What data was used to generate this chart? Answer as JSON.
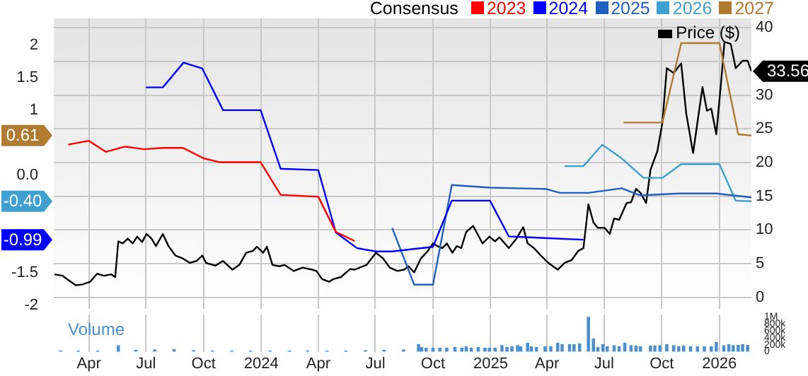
{
  "chart_data": {
    "type": "line",
    "legend_title": "Consensus",
    "legend": "top",
    "grid": true,
    "xlim": [
      "2023-02-04",
      "2026-02-21"
    ],
    "annotations": [
      "0.61",
      "-0.40",
      "-0.99"
    ],
    "xticks": [
      {
        "value": "2023-04",
        "label": "Apr"
      },
      {
        "value": "2023-07",
        "label": "Jul"
      },
      {
        "value": "2023-10",
        "label": "Oct"
      },
      {
        "value": "2024-01",
        "label": "2024"
      },
      {
        "value": "2024-04",
        "label": "Apr"
      },
      {
        "value": "2024-07",
        "label": "Jul"
      },
      {
        "value": "2024-10",
        "label": "Oct"
      },
      {
        "value": "2025-01",
        "label": "2025"
      },
      {
        "value": "2025-04",
        "label": "Apr"
      },
      {
        "value": "2025-07",
        "label": "Jul"
      },
      {
        "value": "2025-10",
        "label": "Oct"
      },
      {
        "value": "2026-01",
        "label": "2026"
      }
    ],
    "ylim": [
      -2.05,
      2.41
    ],
    "yticks": [
      {
        "value": -2,
        "label": "-2"
      },
      {
        "value": -1.5,
        "label": "-1.5"
      },
      {
        "value": 0,
        "label": "0.0"
      },
      {
        "value": 1,
        "label": "1"
      },
      {
        "value": 1.5,
        "label": "1.5"
      },
      {
        "value": 2,
        "label": "2"
      }
    ],
    "y2lim": [
      -1.7,
      41.4
    ],
    "y2ticks": [
      0,
      5,
      10,
      15,
      20,
      25,
      30,
      {
        "value": 35,
        "label": null
      },
      40
    ],
    "y3lim": [
      0,
      1060000
    ],
    "y3ticks": [
      {
        "value": 0,
        "label": "0"
      },
      {
        "value": 200000,
        "label": "200k"
      },
      {
        "value": 400000,
        "label": "400k"
      },
      {
        "value": 600000,
        "label": "600k"
      },
      {
        "value": 800000,
        "label": "800k"
      },
      {
        "value": 1000000,
        "label": "1M"
      }
    ],
    "series": [
      {
        "name": "2023",
        "color": "#ff0000",
        "x": [
          "2023-02-27",
          "2023-04-01",
          "2023-04-28",
          "2023-05-29",
          "2023-06-28",
          "2023-07-28",
          "2023-08-29",
          "2023-10-01",
          "2023-10-27",
          "2023-12-31",
          "2024-02-01",
          "2024-04-01",
          "2024-04-29",
          "2024-05-29"
        ],
        "values": [
          0.47,
          0.53,
          0.36,
          0.44,
          0.4,
          0.42,
          0.42,
          0.26,
          0.2,
          0.2,
          -0.3,
          -0.33,
          -0.87,
          -1.01
        ]
      },
      {
        "name": "2024",
        "color": "#0000ff",
        "x": [
          "2023-07-01",
          "2023-07-28",
          "2023-08-30",
          "2023-09-29",
          "2023-11-01",
          "2023-12-31",
          "2024-02-01",
          "2024-04-01",
          "2024-04-29",
          "2024-06-02",
          "2024-07-02",
          "2024-07-28",
          "2024-10-01",
          "2024-10-31",
          "2024-12-31",
          "2025-01-30",
          "2025-05-29"
        ],
        "values": [
          1.35,
          1.35,
          1.73,
          1.64,
          1.0,
          1.0,
          0.1,
          0.08,
          -0.88,
          -1.12,
          -1.17,
          -1.17,
          -1.1,
          -0.39,
          -0.39,
          -0.94,
          -0.99
        ]
      },
      {
        "name": "2025",
        "color": "#1f5fbf",
        "x": [
          "2024-07-28",
          "2024-09-01",
          "2024-10-01",
          "2024-10-31",
          "2024-12-31",
          "2025-03-30",
          "2025-04-22",
          "2025-06-06",
          "2025-07-29",
          "2025-08-28",
          "2025-10-28",
          "2025-12-27",
          "2026-02-21"
        ],
        "values": [
          -0.81,
          -1.68,
          -1.68,
          -0.15,
          -0.19,
          -0.21,
          -0.27,
          -0.27,
          -0.2,
          -0.31,
          -0.28,
          -0.28,
          -0.34
        ]
      },
      {
        "name": "2026",
        "color": "#3ea0d0",
        "x": [
          "2025-04-29",
          "2025-05-29",
          "2025-06-28",
          "2025-07-29",
          "2025-09-02",
          "2025-10-02",
          "2025-11-01",
          "2026-01-01",
          "2026-01-27",
          "2026-02-21"
        ],
        "values": [
          0.14,
          0.14,
          0.47,
          0.26,
          -0.04,
          -0.04,
          0.17,
          0.17,
          -0.39,
          -0.4
        ]
      },
      {
        "name": "2027",
        "color": "#b07a30",
        "x": [
          "2025-08-01",
          "2025-10-02",
          "2025-11-01",
          "2026-01-01",
          "2026-01-31",
          "2026-02-21"
        ],
        "values": [
          0.81,
          0.81,
          2.03,
          2.03,
          0.63,
          0.61
        ]
      },
      {
        "name": "Price ($)",
        "color": "#000000",
        "axis": "y2",
        "x": [
          "2023-02-05",
          "2023-02-18",
          "2023-02-28",
          "2023-03-11",
          "2023-03-22",
          "2023-04-03",
          "2023-04-14",
          "2023-04-25",
          "2023-05-07",
          "2023-05-13",
          "2023-05-18",
          "2023-05-25",
          "2023-06-02",
          "2023-06-10",
          "2023-06-17",
          "2023-06-25",
          "2023-07-02",
          "2023-07-10",
          "2023-07-17",
          "2023-07-28",
          "2023-08-06",
          "2023-08-17",
          "2023-08-28",
          "2023-09-09",
          "2023-09-20",
          "2023-09-29",
          "2023-10-05",
          "2023-10-20",
          "2023-11-01",
          "2023-11-16",
          "2023-11-27",
          "2023-12-08",
          "2023-12-19",
          "2023-12-25",
          "2024-01-04",
          "2024-01-10",
          "2024-01-19",
          "2024-01-30",
          "2024-02-07",
          "2024-02-22",
          "2024-03-07",
          "2024-03-22",
          "2024-03-29",
          "2024-04-07",
          "2024-04-18",
          "2024-04-25",
          "2024-05-07",
          "2024-05-22",
          "2024-05-29",
          "2024-06-06",
          "2024-06-17",
          "2024-07-02",
          "2024-07-13",
          "2024-07-24",
          "2024-08-05",
          "2024-08-16",
          "2024-08-23",
          "2024-09-01",
          "2024-09-12",
          "2024-09-23",
          "2024-10-01",
          "2024-10-08",
          "2024-10-16",
          "2024-10-23",
          "2024-11-01",
          "2024-11-08",
          "2024-11-15",
          "2024-11-23",
          "2024-12-04",
          "2024-12-11",
          "2024-12-19",
          "2024-12-30",
          "2025-01-08",
          "2025-01-15",
          "2025-01-30",
          "2025-02-11",
          "2025-02-22",
          "2025-03-01",
          "2025-03-11",
          "2025-03-22",
          "2025-04-03",
          "2025-04-18",
          "2025-04-29",
          "2025-05-10",
          "2025-05-21",
          "2025-05-29",
          "2025-06-06",
          "2025-06-14",
          "2025-06-21",
          "2025-07-02",
          "2025-07-10",
          "2025-07-17",
          "2025-07-25",
          "2025-08-06",
          "2025-08-13",
          "2025-08-21",
          "2025-08-28",
          "2025-09-06",
          "2025-09-13",
          "2025-09-24",
          "2025-10-02",
          "2025-10-09",
          "2025-10-20",
          "2025-11-01",
          "2025-11-09",
          "2025-11-20",
          "2025-11-27",
          "2025-12-05",
          "2025-12-12",
          "2025-12-19",
          "2025-12-27",
          "2026-01-04",
          "2026-01-09",
          "2026-01-19",
          "2026-01-27",
          "2026-02-07",
          "2026-02-15",
          "2026-02-21"
        ],
        "values": [
          3.4,
          3.2,
          2.5,
          1.8,
          1.9,
          2.3,
          3.5,
          3.2,
          3.4,
          3.0,
          8.3,
          8.0,
          8.7,
          8.0,
          9.0,
          8.2,
          9.4,
          8.7,
          7.6,
          9.4,
          7.6,
          6.2,
          5.8,
          5.1,
          5.4,
          6.2,
          5.1,
          4.7,
          5.4,
          4.1,
          4.8,
          6.6,
          6.9,
          7.5,
          6.6,
          7.5,
          4.8,
          4.6,
          4.8,
          3.9,
          4.4,
          4.1,
          3.9,
          2.7,
          2.3,
          2.7,
          3.0,
          4.2,
          4.1,
          4.4,
          4.8,
          6.6,
          5.8,
          4.4,
          3.9,
          4.1,
          4.6,
          3.7,
          5.8,
          6.9,
          8.0,
          7.6,
          7.3,
          8.0,
          6.6,
          7.6,
          7.3,
          9.7,
          10.6,
          9.4,
          8.0,
          9.0,
          8.3,
          8.9,
          7.3,
          8.7,
          10.4,
          8.0,
          7.3,
          6.2,
          5.1,
          4.1,
          5.1,
          5.5,
          6.9,
          7.3,
          13.8,
          11.1,
          10.3,
          10.3,
          9.4,
          11.7,
          11.5,
          14.0,
          14.1,
          16.1,
          15.5,
          14.0,
          18.9,
          21.7,
          25.9,
          34.0,
          33.3,
          34.7,
          27.3,
          21.4,
          26.0,
          31.2,
          27.7,
          28.0,
          24.2,
          32.3,
          37.9,
          37.6,
          34.0,
          35.1,
          35.1,
          33.56
        ],
        "value_labels": [
          null,
          null,
          null,
          null,
          null,
          null,
          null,
          null,
          null,
          null,
          null,
          null,
          null,
          null,
          null,
          null,
          null,
          null,
          null,
          null,
          null,
          null,
          null,
          null,
          null,
          null,
          null,
          null,
          null,
          null,
          null,
          null,
          null,
          null,
          null,
          null,
          null,
          null,
          null,
          null,
          null,
          null,
          null,
          null,
          null,
          null,
          null,
          null,
          null,
          null,
          null,
          null,
          null,
          null,
          null,
          null,
          null,
          null,
          null,
          null,
          null,
          null,
          null,
          null,
          null,
          null,
          null,
          null,
          null,
          null,
          null,
          null,
          null,
          null,
          null,
          null,
          null,
          null,
          null,
          null,
          null,
          null,
          null,
          null,
          null,
          null,
          null,
          null,
          null,
          null,
          null,
          null,
          null,
          null,
          null,
          null,
          null,
          null,
          null,
          null,
          null,
          null,
          null,
          null,
          null,
          null,
          null,
          null,
          null,
          null,
          null,
          null,
          null,
          null,
          null,
          null,
          null,
          "33.56"
        ]
      },
      {
        "name": "Volume",
        "type": "bar",
        "color": "#4a90d0",
        "axis": "y3",
        "x": [
          "2023-02-15",
          "2023-03-15",
          "2023-04-15",
          "2023-05-18",
          "2023-06-15",
          "2023-07-15",
          "2023-08-15",
          "2023-09-15",
          "2023-10-15",
          "2023-11-15",
          "2023-12-15",
          "2024-01-15",
          "2024-02-15",
          "2024-03-15",
          "2024-04-15",
          "2024-05-15",
          "2024-06-15",
          "2024-07-15",
          "2024-08-15",
          "2024-09-08",
          "2024-09-13",
          "2024-09-20",
          "2024-10-01",
          "2024-10-12",
          "2024-10-23",
          "2024-11-05",
          "2024-11-16",
          "2024-11-23",
          "2024-12-01",
          "2024-12-12",
          "2024-12-23",
          "2024-12-30",
          "2025-01-08",
          "2025-01-19",
          "2025-01-27",
          "2025-02-04",
          "2025-02-13",
          "2025-02-18",
          "2025-03-01",
          "2025-03-07",
          "2025-03-15",
          "2025-03-29",
          "2025-04-07",
          "2025-04-18",
          "2025-04-25",
          "2025-05-07",
          "2025-05-14",
          "2025-05-23",
          "2025-06-06",
          "2025-06-14",
          "2025-06-21",
          "2025-06-29",
          "2025-07-06",
          "2025-07-17",
          "2025-07-25",
          "2025-08-03",
          "2025-08-13",
          "2025-08-21",
          "2025-08-28",
          "2025-09-13",
          "2025-09-20",
          "2025-09-28",
          "2025-10-09",
          "2025-10-20",
          "2025-10-28",
          "2025-11-05",
          "2025-11-16",
          "2025-11-27",
          "2025-12-08",
          "2025-12-19",
          "2025-12-27",
          "2026-01-08",
          "2026-01-16",
          "2026-01-23",
          "2026-01-31",
          "2026-02-07",
          "2026-02-15"
        ],
        "values": [
          20000,
          20000,
          20000,
          170000,
          40000,
          50000,
          60000,
          30000,
          20000,
          20000,
          20000,
          20000,
          20000,
          20000,
          20000,
          20000,
          30000,
          40000,
          50000,
          200000,
          120000,
          100000,
          100000,
          100000,
          100000,
          120000,
          100000,
          140000,
          100000,
          120000,
          100000,
          100000,
          100000,
          170000,
          120000,
          140000,
          170000,
          140000,
          240000,
          140000,
          120000,
          140000,
          140000,
          240000,
          200000,
          200000,
          200000,
          220000,
          980000,
          360000,
          120000,
          200000,
          140000,
          170000,
          140000,
          240000,
          170000,
          160000,
          140000,
          160000,
          160000,
          170000,
          200000,
          170000,
          140000,
          160000,
          140000,
          140000,
          140000,
          140000,
          260000,
          170000,
          200000,
          170000,
          180000,
          200000,
          180000
        ]
      }
    ]
  }
}
